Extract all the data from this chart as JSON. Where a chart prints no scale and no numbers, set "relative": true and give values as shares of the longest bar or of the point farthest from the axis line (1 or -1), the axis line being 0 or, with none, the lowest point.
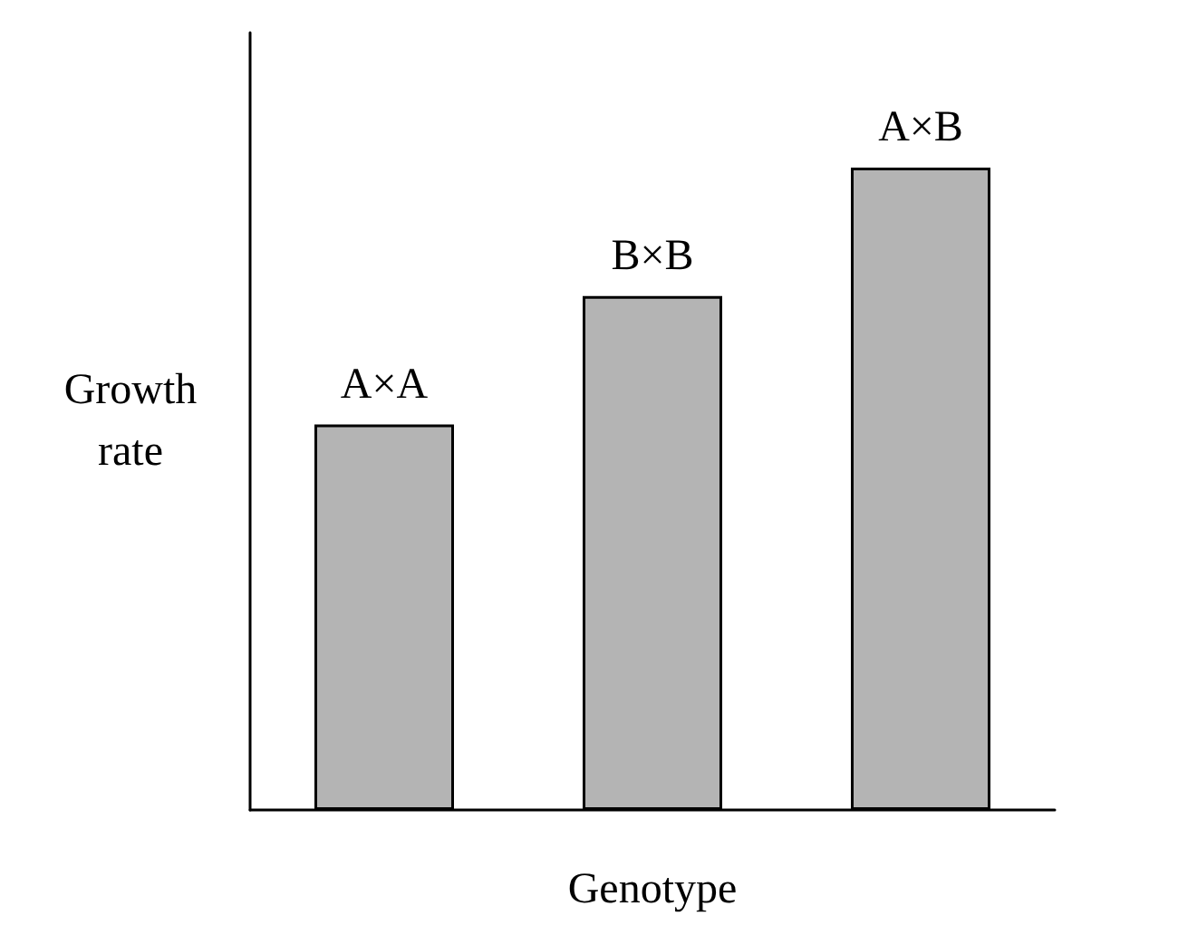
{
  "chart_data": {
    "type": "bar",
    "xlabel": "Genotype",
    "ylabel": "Growth\nrate",
    "relative": true,
    "categories": [
      "A×A",
      "B×B",
      "A×B"
    ],
    "values": [
      0.6,
      0.8,
      1
    ],
    "color": "#b4b4b4",
    "grid": false
  }
}
